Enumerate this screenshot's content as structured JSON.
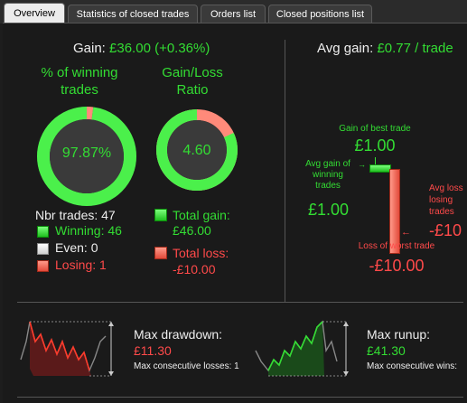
{
  "tabs": [
    {
      "label": "Overview",
      "active": true
    },
    {
      "label": "Statistics of closed trades",
      "active": false
    },
    {
      "label": "Orders list",
      "active": false
    },
    {
      "label": "Closed positions list",
      "active": false
    }
  ],
  "summary": {
    "gain_label": "Gain: ",
    "gain_value": "£36.00 (+0.36%)",
    "avg_gain_label": "Avg gain: ",
    "avg_gain_value": "£0.77 / trade"
  },
  "winning_donut": {
    "title_line1": "% of winning",
    "title_line2": "trades",
    "value": "97.87%",
    "fraction": 0.9787
  },
  "ratio_donut": {
    "title_line1": "Gain/Loss",
    "title_line2": "Ratio",
    "value": "4.60",
    "fraction": 0.82
  },
  "trades": {
    "nbr_label": "Nbr trades: 47",
    "winning": "Winning: 46",
    "even": "Even: 0",
    "losing": "Losing: 1",
    "total_gain_label": "Total gain:",
    "total_gain_value": "£46.00",
    "total_loss_label": "Total loss:",
    "total_loss_value": "-£10.00"
  },
  "best_worst": {
    "best_label": "Gain of best trade",
    "best_value": "£1.00",
    "avg_win_line1": "Avg gain of",
    "avg_win_line2": "winning",
    "avg_win_line3": "trades",
    "avg_win_value": "£1.00",
    "avg_loss_line1": "Avg loss",
    "avg_loss_line2": "losing",
    "avg_loss_line3": "trades",
    "avg_loss_value": "-£10",
    "worst_label": "Loss of worst trade",
    "worst_value": "-£10.00"
  },
  "drawdown": {
    "label": "Max drawdown:",
    "value": "£11.30",
    "sub": "Max consecutive losses: 1"
  },
  "runup": {
    "label": "Max runup:",
    "value": "£41.30",
    "sub": "Max consecutive wins:"
  },
  "colors": {
    "green": "#33dd33",
    "red": "#ff4a4a",
    "background": "#1a1a1a"
  }
}
